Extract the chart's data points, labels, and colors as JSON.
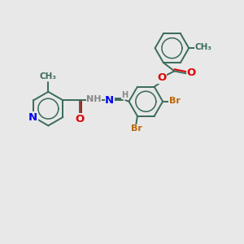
{
  "bg_color": "#e8e8e8",
  "bond_color": "#3a6b5a",
  "bond_width": 1.4,
  "N_color": "#0000ee",
  "O_color": "#dd0000",
  "Br_color": "#bb6600",
  "H_color": "#888888",
  "font_size": 8.0,
  "figsize": [
    3.0,
    3.0
  ],
  "dpi": 100,
  "xlim": [
    0,
    10
  ],
  "ylim": [
    0,
    10
  ]
}
